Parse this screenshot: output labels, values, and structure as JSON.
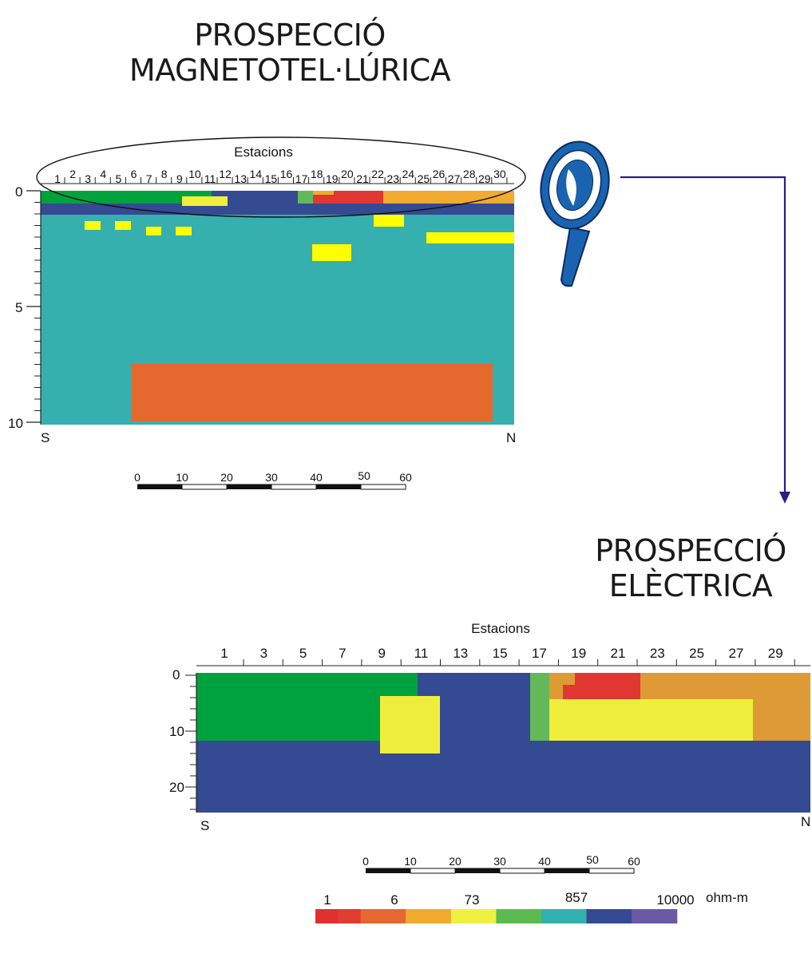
{
  "top_title": {
    "line1": "PROSPECCIÓ",
    "line2": "MAGNETOTEL·LÚRICA"
  },
  "bottom_title": {
    "line1": "PROSPECCIÓ",
    "line2": "ELÈCTRICA"
  },
  "mt_section": {
    "stations_label": "Estacions",
    "stations": [
      "1",
      "2",
      "3",
      "4",
      "5",
      "6",
      "7",
      "8",
      "9",
      "10",
      "11",
      "12",
      "13",
      "14",
      "15",
      "16",
      "17",
      "18",
      "19",
      "20",
      "21",
      "22",
      "23",
      "24",
      "25",
      "26",
      "27",
      "28",
      "29",
      "30"
    ],
    "depth_ticks": [
      "0",
      "5",
      "10"
    ],
    "south": "S",
    "north": "N"
  },
  "er_section": {
    "stations_label": "Estacions",
    "stations": [
      "1",
      "3",
      "5",
      "7",
      "9",
      "11",
      "13",
      "15",
      "17",
      "19",
      "21",
      "23",
      "25",
      "27",
      "29"
    ],
    "depth_ticks": [
      "0",
      "10",
      "20"
    ],
    "south": "S",
    "north": "N"
  },
  "scale_top": {
    "labels": [
      "0",
      "10",
      "20",
      "30",
      "40",
      "50",
      "60"
    ]
  },
  "scale_bottom": {
    "labels": [
      "0",
      "10",
      "20",
      "30",
      "40",
      "50",
      "60"
    ]
  },
  "legend": {
    "values": [
      "1",
      "6",
      "73",
      "857",
      "10000"
    ],
    "unit": "ohm-m",
    "colors": [
      "#e03030",
      "#e03c30",
      "#e56832",
      "#e56832",
      "#f0ab30",
      "#f0ab30",
      "#f0f040",
      "#f0f040",
      "#5bbb50",
      "#5bbb50",
      "#32b0b0",
      "#32b0b0",
      "#344a92",
      "#344a92",
      "#6a5aa6",
      "#6a5aa6"
    ]
  },
  "colors": {
    "green": "#00a23e",
    "darkblue": "#344a92",
    "teal": "#35b0ae",
    "yellow": "#f0ee3c",
    "orange": "#e5682f",
    "amber": "#f0ab30",
    "red": "#e03732",
    "lightgreen": "#63b95a",
    "brown_orange": "#de9a34",
    "bright_yellow": "#ffff00",
    "arrow": "#2a1f80",
    "magnifier": "#1a63b0"
  },
  "icons": {
    "magnifier": "magnifying-glass-icon"
  }
}
